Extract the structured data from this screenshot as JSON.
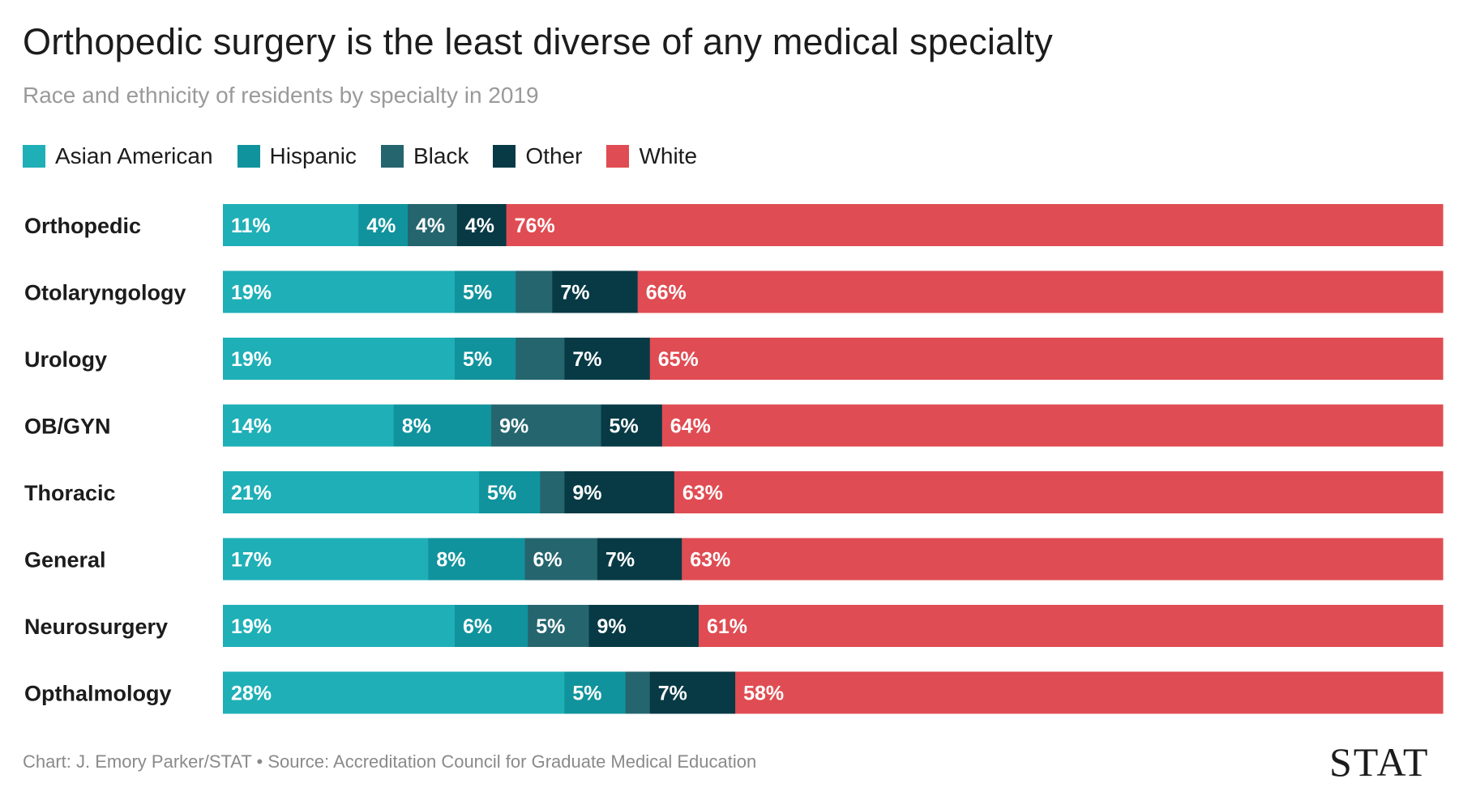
{
  "title": "Orthopedic surgery is the least diverse of any medical specialty",
  "subtitle": "Race and ethnicity of residents by specialty in 2019",
  "footer": "Chart: J. Emory Parker/STAT • Source: Accreditation Council for Graduate Medical Education",
  "logo": "STAT",
  "colors": {
    "Asian American": "#1fafb7",
    "Hispanic": "#10939c",
    "Black": "#25656e",
    "Other": "#073a45",
    "White": "#e04c53"
  },
  "chart_data": {
    "type": "bar",
    "orientation": "horizontal",
    "stacked": true,
    "categories": [
      "Orthopedic",
      "Otolaryngology",
      "Urology",
      "OB/GYN",
      "Thoracic",
      "General",
      "Neurosurgery",
      "Opthalmology"
    ],
    "series": [
      {
        "name": "Asian American",
        "values": [
          11,
          19,
          19,
          14,
          21,
          17,
          19,
          28
        ],
        "labels": [
          "11%",
          "19%",
          "19%",
          "14%",
          "21%",
          "17%",
          "19%",
          "28%"
        ]
      },
      {
        "name": "Hispanic",
        "values": [
          4,
          5,
          5,
          8,
          5,
          8,
          6,
          5
        ],
        "labels": [
          "4%",
          "5%",
          "5%",
          "8%",
          "5%",
          "8%",
          "6%",
          "5%"
        ]
      },
      {
        "name": "Black",
        "values": [
          4,
          3,
          4,
          9,
          2,
          6,
          5,
          2
        ],
        "labels": [
          "4%",
          "",
          "",
          "9%",
          "",
          "6%",
          "5%",
          ""
        ]
      },
      {
        "name": "Other",
        "values": [
          4,
          7,
          7,
          5,
          9,
          7,
          9,
          7
        ],
        "labels": [
          "4%",
          "7%",
          "7%",
          "5%",
          "9%",
          "7%",
          "9%",
          "7%"
        ]
      },
      {
        "name": "White",
        "values": [
          76,
          66,
          65,
          64,
          63,
          63,
          61,
          58
        ],
        "labels": [
          "76%",
          "66%",
          "65%",
          "64%",
          "63%",
          "63%",
          "61%",
          "58%"
        ]
      }
    ],
    "legend_position": "top-left",
    "grid": false
  }
}
